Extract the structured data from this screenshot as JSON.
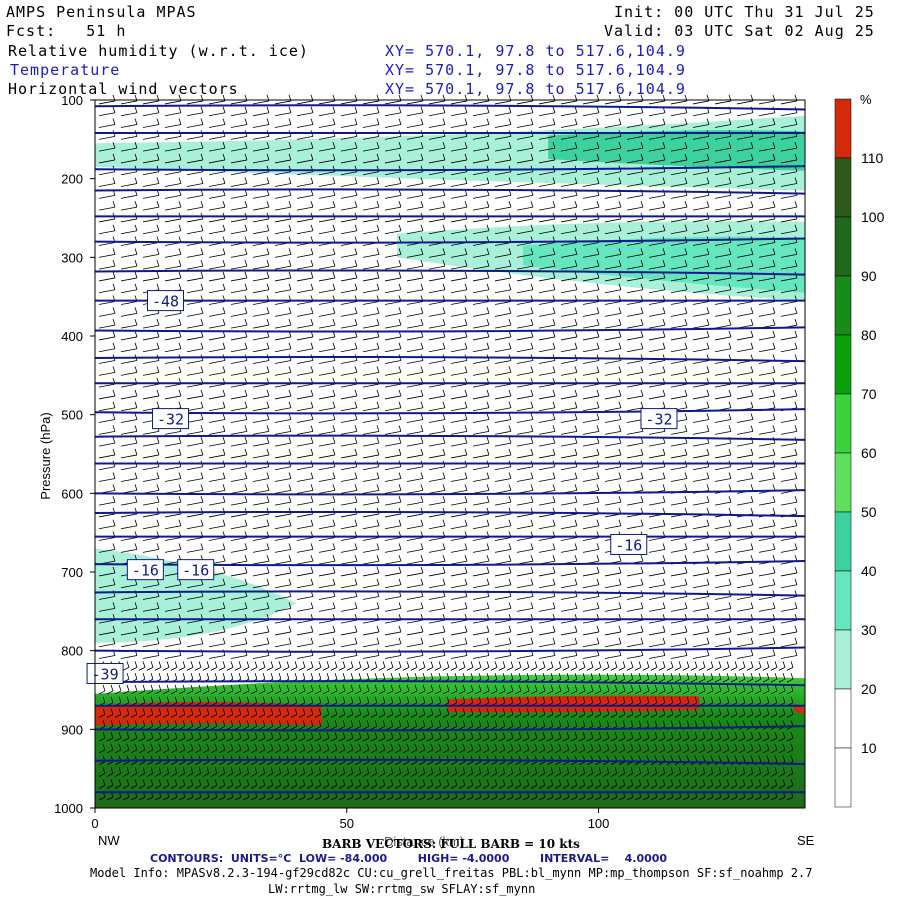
{
  "header": {
    "model": "AMPS Peninsula MPAS",
    "forecast": "Fcst:   51 h",
    "init": "Init: 00 UTC Thu 31 Jul 25",
    "valid": "Valid: 03 UTC Sat 02 Aug 25",
    "fields": [
      {
        "name": "Relative humidity (w.r.t. ice)",
        "xy": "XY= 570.1, 97.8 to 517.6,104.9"
      },
      {
        "name": "Temperature",
        "xy": "XY= 570.1, 97.8 to 517.6,104.9"
      },
      {
        "name": "Horizontal wind vectors",
        "xy": "XY= 570.1, 97.8 to 517.6,104.9"
      }
    ]
  },
  "colorbar": {
    "unit": "%",
    "ticks": [
      "110",
      "100",
      "90",
      "80",
      "70",
      "60",
      "50",
      "40",
      "30",
      "20",
      "10"
    ],
    "colors": [
      "#d42a0a",
      "#2d5a1a",
      "#1f6a1a",
      "#188c18",
      "#0aa00a",
      "#3cd23c",
      "#5ee05e",
      "#3cd2a0",
      "#64e6be",
      "#a8f0d8",
      "#ffffff",
      "#ffffff"
    ]
  },
  "footer": {
    "barb": "BARB VECTORS: FULL BARB = 10 kts",
    "contours": "CONTOURS:  UNITS=°C  LOW= -84.000        HIGH= -4.0000        INTERVAL=    4.0000",
    "model_info": "Model Info: MPASv8.2.3-194-gf29cd82c CU:cu_grell_freitas PBL:bl_mynn MP:mp_thompson SF:sf_noahmp 2.7",
    "model_info2": "LW:rrtmg_lw SW:rrtmg_sw SFLAY:sf_mynn"
  },
  "chart_data": {
    "type": "heatmap",
    "title": "Relative humidity (w.r.t. ice), Temperature, Horizontal wind vectors",
    "xlabel": "Distance (km)",
    "ylabel": "Pressure (hPa)",
    "x_ticks": [
      "0",
      "50",
      "100"
    ],
    "x_end_labels": {
      "left": "NW",
      "right": "SE"
    },
    "xlim": [
      0,
      141
    ],
    "y_ticks": [
      "100",
      "200",
      "300",
      "400",
      "500",
      "600",
      "700",
      "800",
      "900",
      "1000"
    ],
    "ylim": [
      1000,
      100
    ],
    "contour_labels": [
      {
        "text": "-48",
        "x": 14,
        "p": 355
      },
      {
        "text": "-32",
        "x": 15,
        "p": 505
      },
      {
        "text": "-32",
        "x": 112,
        "p": 505
      },
      {
        "text": "-16",
        "x": 10,
        "p": 697
      },
      {
        "text": "-16",
        "x": 20,
        "p": 697
      },
      {
        "text": "-16",
        "x": 106,
        "p": 665
      },
      {
        "text": "-39",
        "x": 2,
        "p": 829
      }
    ],
    "isotherm_pressures": [
      108,
      142,
      188,
      215,
      248,
      280,
      318,
      355,
      393,
      428,
      460,
      497,
      528,
      562,
      600,
      625,
      655,
      690,
      726,
      760,
      800,
      840,
      870,
      900,
      940,
      980
    ]
  }
}
